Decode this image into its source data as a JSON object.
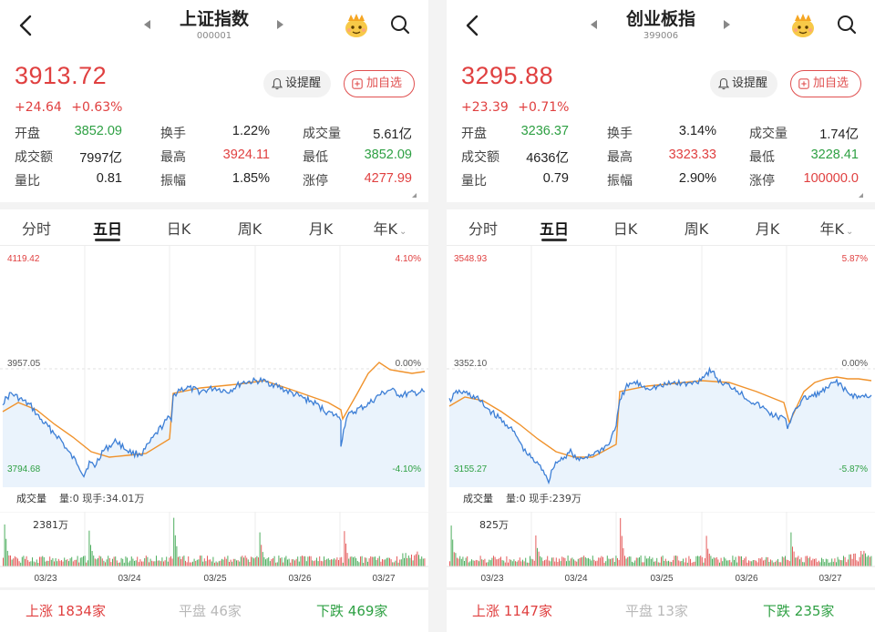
{
  "panels": [
    {
      "title": "上证指数",
      "code": "000001",
      "price": "3913.72",
      "change": "+24.64",
      "change_pct": "+0.63%",
      "alert_label": "设提醒",
      "add_label": "加自选",
      "stats": [
        [
          {
            "label": "开盘",
            "value": "3852.09",
            "tone": "dn"
          },
          {
            "label": "换手",
            "value": "1.22%",
            "tone": "nt"
          },
          {
            "label": "成交量",
            "value": "5.61亿",
            "tone": "nt"
          }
        ],
        [
          {
            "label": "成交额",
            "value": "7997亿",
            "tone": "nt"
          },
          {
            "label": "最高",
            "value": "3924.11",
            "tone": "up"
          },
          {
            "label": "最低",
            "value": "3852.09",
            "tone": "dn"
          }
        ],
        [
          {
            "label": "量比",
            "value": "0.81",
            "tone": "nt"
          },
          {
            "label": "振幅",
            "value": "1.85%",
            "tone": "nt"
          },
          {
            "label": "涨停",
            "value": "4277.99",
            "tone": "up"
          }
        ]
      ],
      "tabs": [
        "分时",
        "五日",
        "日K",
        "周K",
        "月K",
        "年K"
      ],
      "active_tab": 1,
      "axis": {
        "top": "4119.42",
        "mid": "3957.05",
        "bottom": "3794.68",
        "pct_top": "4.10%",
        "pct_mid": "0.00%",
        "pct_bottom": "-4.10%"
      },
      "volume_header": "成交量",
      "volume_info": "量:0 现手:34.01万",
      "volume_max": "2381万",
      "dates": [
        "03/23",
        "03/24",
        "03/25",
        "03/26",
        "03/27"
      ],
      "advance": {
        "label": "上涨",
        "value": "1834家"
      },
      "flat": {
        "label": "平盘",
        "value": "46家"
      },
      "decline": {
        "label": "下跌",
        "value": "469家"
      }
    },
    {
      "title": "创业板指",
      "code": "399006",
      "price": "3295.88",
      "change": "+23.39",
      "change_pct": "+0.71%",
      "alert_label": "设提醒",
      "add_label": "加自选",
      "stats": [
        [
          {
            "label": "开盘",
            "value": "3236.37",
            "tone": "dn"
          },
          {
            "label": "换手",
            "value": "3.14%",
            "tone": "nt"
          },
          {
            "label": "成交量",
            "value": "1.74亿",
            "tone": "nt"
          }
        ],
        [
          {
            "label": "成交额",
            "value": "4636亿",
            "tone": "nt"
          },
          {
            "label": "最高",
            "value": "3323.33",
            "tone": "up"
          },
          {
            "label": "最低",
            "value": "3228.41",
            "tone": "dn"
          }
        ],
        [
          {
            "label": "量比",
            "value": "0.79",
            "tone": "nt"
          },
          {
            "label": "振幅",
            "value": "2.90%",
            "tone": "nt"
          },
          {
            "label": "涨停",
            "value": "100000.0",
            "tone": "up"
          }
        ]
      ],
      "tabs": [
        "分时",
        "五日",
        "日K",
        "周K",
        "月K",
        "年K"
      ],
      "active_tab": 1,
      "axis": {
        "top": "3548.93",
        "mid": "3352.10",
        "bottom": "3155.27",
        "pct_top": "5.87%",
        "pct_mid": "0.00%",
        "pct_bottom": "-5.87%"
      },
      "volume_header": "成交量",
      "volume_info": "量:0 现手:239万",
      "volume_max": "825万",
      "dates": [
        "03/23",
        "03/24",
        "03/25",
        "03/26",
        "03/27"
      ],
      "advance": {
        "label": "上涨",
        "value": "1147家"
      },
      "flat": {
        "label": "平盘",
        "value": "13家"
      },
      "decline": {
        "label": "下跌",
        "value": "235家"
      }
    }
  ],
  "colors": {
    "up": "#e04040",
    "down": "#2ea043",
    "flat": "#b8b8b8",
    "price_line": "#3d7fd6",
    "avg_line": "#f0922b",
    "fill": "#eaf3fc"
  },
  "icons": [
    "back-arrow-icon",
    "prev-triangle-icon",
    "next-triangle-icon",
    "crown-mascot-icon",
    "search-icon",
    "bell-icon",
    "plus-box-icon",
    "chevron-down-icon"
  ]
}
